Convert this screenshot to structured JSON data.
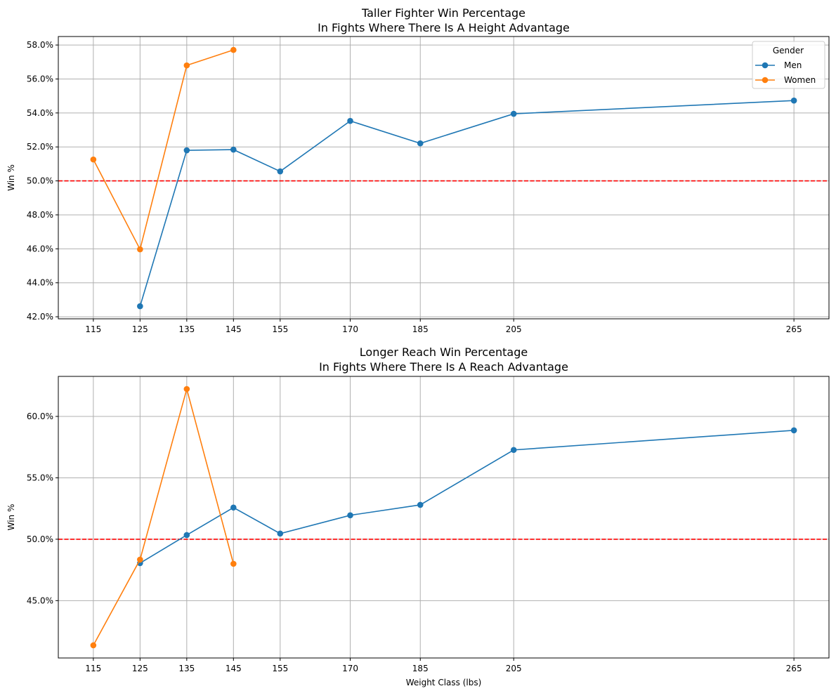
{
  "colors": {
    "men": "#1f77b4",
    "women": "#ff7f0e",
    "reference": "#ff0000",
    "grid": "#b0b0b0"
  },
  "chart_data": [
    {
      "type": "line",
      "title": "Taller Fighter Win Percentage",
      "subtitle": "In Fights Where There Is A Height Advantage",
      "xlabel": "",
      "ylabel": "Win %",
      "x_ticks": [
        115,
        125,
        135,
        145,
        155,
        170,
        185,
        205,
        265
      ],
      "y_ticks": [
        42,
        44,
        46,
        48,
        50,
        52,
        54,
        56,
        58
      ],
      "y_tick_labels": [
        "42.0%",
        "44.0%",
        "46.0%",
        "48.0%",
        "50.0%",
        "52.0%",
        "54.0%",
        "56.0%",
        "58.0%"
      ],
      "xlim": [
        107.5,
        272.5
      ],
      "ylim": [
        41.88,
        58.5
      ],
      "grid": true,
      "reference_line": 50,
      "legend": {
        "title": "Gender",
        "placement": "top-right"
      },
      "series": [
        {
          "name": "Men",
          "x": [
            125,
            135,
            145,
            155,
            170,
            185,
            205,
            265
          ],
          "values": [
            42.62,
            51.8,
            51.84,
            50.56,
            53.53,
            52.21,
            53.95,
            54.73
          ]
        },
        {
          "name": "Women",
          "x": [
            115,
            125,
            135,
            145
          ],
          "values": [
            51.26,
            45.97,
            56.8,
            57.71
          ]
        }
      ]
    },
    {
      "type": "line",
      "title": "Longer Reach Win Percentage",
      "subtitle": "In Fights Where There Is A Reach Advantage",
      "xlabel": "Weight Class (lbs)",
      "ylabel": "Win %",
      "x_ticks": [
        115,
        125,
        135,
        145,
        155,
        170,
        185,
        205,
        265
      ],
      "y_ticks": [
        45,
        50,
        55,
        60
      ],
      "y_tick_labels": [
        "45.0%",
        "50.0%",
        "55.0%",
        "60.0%"
      ],
      "xlim": [
        107.5,
        272.5
      ],
      "ylim": [
        40.33,
        63.26
      ],
      "grid": true,
      "reference_line": 50,
      "series": [
        {
          "name": "Men",
          "x": [
            125,
            135,
            145,
            155,
            170,
            185,
            205,
            265
          ],
          "values": [
            48.05,
            50.34,
            52.58,
            50.46,
            51.95,
            52.8,
            57.27,
            58.87
          ]
        },
        {
          "name": "Women",
          "x": [
            115,
            125,
            135,
            145
          ],
          "values": [
            41.36,
            48.34,
            62.23,
            48.0
          ]
        }
      ]
    }
  ]
}
